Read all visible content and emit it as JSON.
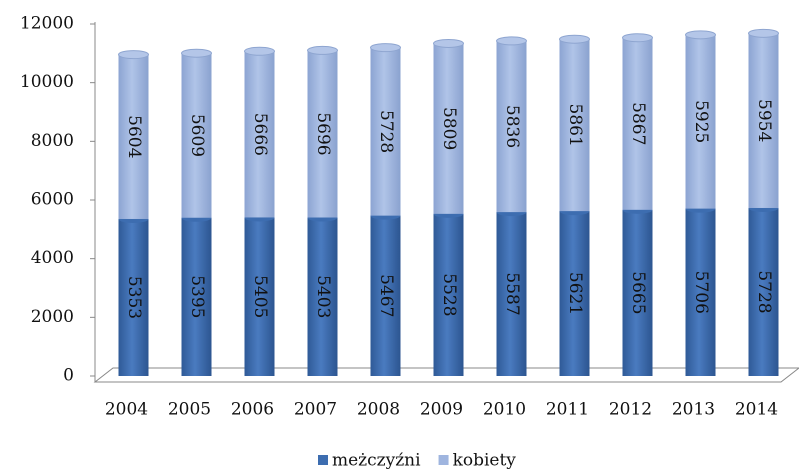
{
  "chart_data": {
    "type": "bar",
    "stacked": true,
    "categories": [
      "2004",
      "2005",
      "2006",
      "2007",
      "2008",
      "2009",
      "2010",
      "2011",
      "2012",
      "2013",
      "2014"
    ],
    "series": [
      {
        "name": "meżczyźni",
        "color": "#3d6db0",
        "values": [
          5353,
          5395,
          5405,
          5403,
          5467,
          5528,
          5587,
          5621,
          5665,
          5706,
          5728
        ]
      },
      {
        "name": "kobiety",
        "color": "#9fb5df",
        "values": [
          5604,
          5609,
          5666,
          5696,
          5728,
          5809,
          5836,
          5861,
          5867,
          5925,
          5954
        ]
      }
    ],
    "ylim": [
      0,
      12000
    ],
    "yticks": [
      0,
      2000,
      4000,
      6000,
      8000,
      10000,
      12000
    ],
    "legend": "bottom"
  }
}
